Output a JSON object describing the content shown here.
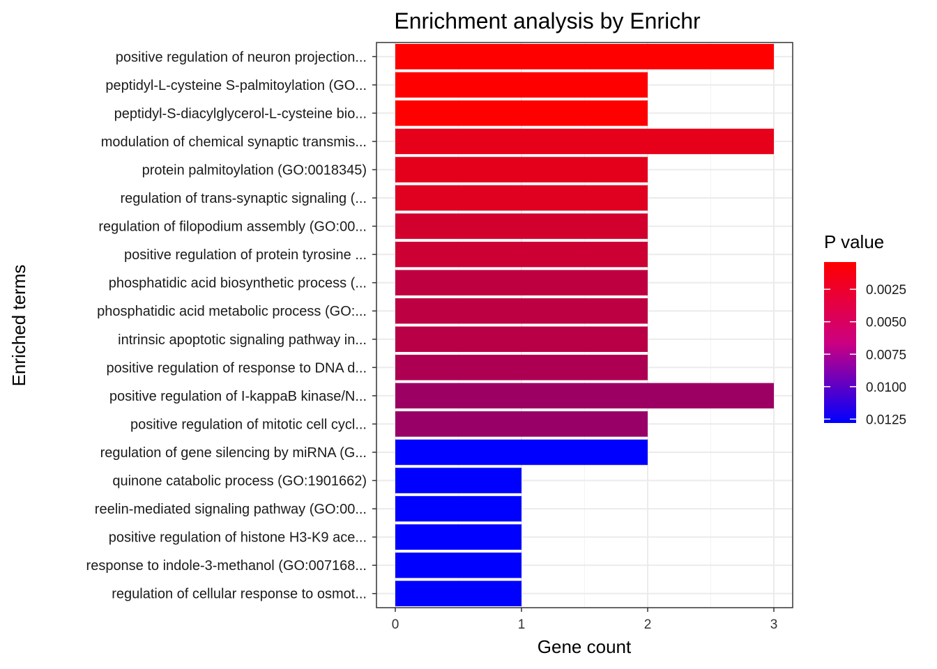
{
  "chart_data": {
    "type": "bar",
    "orientation": "horizontal",
    "title": "Enrichment analysis by Enrichr",
    "xlabel": "Gene count",
    "ylabel": "Enriched terms",
    "xlim": [
      0,
      3
    ],
    "xticks": [
      0,
      1,
      2,
      3
    ],
    "legend": {
      "title": "P value",
      "position": "right",
      "ticks": [
        "0.0025",
        "0.0050",
        "0.0075",
        "0.0100",
        "0.0125"
      ],
      "tick_values": [
        0.0025,
        0.005,
        0.0075,
        0.01,
        0.0125
      ],
      "range": [
        0.0004,
        0.0128
      ],
      "color_low": "#ff0000",
      "color_high": "#0000ff"
    },
    "categories": [
      "positive regulation of neuron projection...",
      "peptidyl-L-cysteine S-palmitoylation (GO...",
      "peptidyl-S-diacylglycerol-L-cysteine bio...",
      "modulation of chemical synaptic transmis...",
      "protein palmitoylation (GO:0018345)",
      "regulation of trans-synaptic signaling (...",
      "regulation of filopodium assembly (GO:00...",
      "positive regulation of protein tyrosine ...",
      "phosphatidic acid biosynthetic process (...",
      "phosphatidic acid metabolic process (GO:...",
      "intrinsic apoptotic signaling pathway in...",
      "positive regulation of response to DNA d...",
      "positive regulation of I-kappaB kinase/N...",
      "positive regulation of mitotic cell cycl...",
      "regulation of gene silencing by miRNA (G...",
      "quinone catabolic process (GO:1901662)",
      "reelin-mediated signaling pathway (GO:00...",
      "positive regulation of histone H3-K9 ace...",
      "response to indole-3-methanol (GO:007168...",
      "regulation of cellular response to osmot..."
    ],
    "values": [
      3,
      2,
      2,
      3,
      2,
      2,
      2,
      2,
      2,
      2,
      2,
      2,
      3,
      2,
      2,
      1,
      1,
      1,
      1,
      1
    ],
    "p_values": [
      0.0004,
      0.0004,
      0.0004,
      0.0016,
      0.0017,
      0.0019,
      0.0026,
      0.0029,
      0.0035,
      0.0036,
      0.0038,
      0.0044,
      0.0052,
      0.0054,
      0.0128,
      0.0128,
      0.0128,
      0.0128,
      0.0128,
      0.0128
    ]
  }
}
